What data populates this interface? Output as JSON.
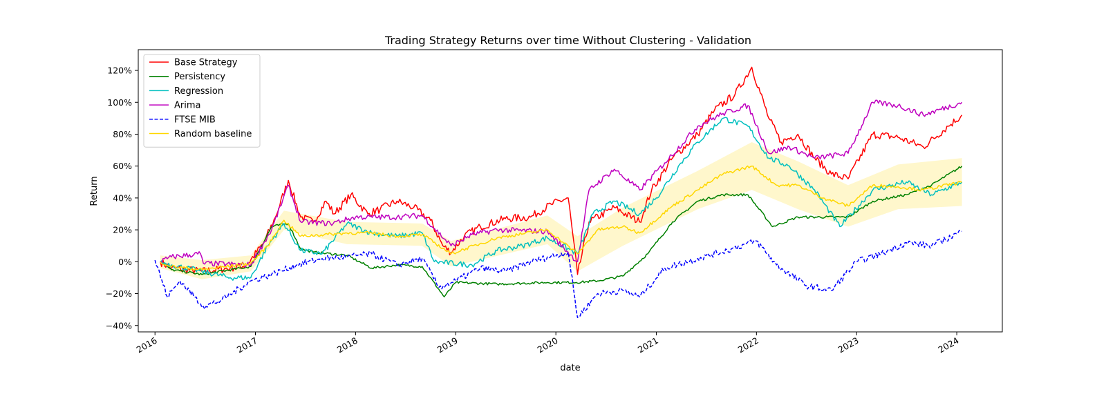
{
  "chart_data": {
    "type": "line",
    "title": "Trading Strategy Returns over time Without Clustering - Validation",
    "xlabel": "date",
    "ylabel": "Return",
    "xlim": [
      "2015-11-01",
      "2024-06-15"
    ],
    "ylim": [
      -0.44,
      1.33
    ],
    "x_ticks": [
      {
        "date": "2016-01-01",
        "label": "2016"
      },
      {
        "date": "2017-01-01",
        "label": "2017"
      },
      {
        "date": "2018-01-01",
        "label": "2018"
      },
      {
        "date": "2019-01-01",
        "label": "2019"
      },
      {
        "date": "2020-01-01",
        "label": "2020"
      },
      {
        "date": "2021-01-01",
        "label": "2021"
      },
      {
        "date": "2022-01-01",
        "label": "2022"
      },
      {
        "date": "2023-01-01",
        "label": "2023"
      },
      {
        "date": "2024-01-01",
        "label": "2024"
      }
    ],
    "y_ticks": [
      {
        "value": -0.4,
        "label": "−40%"
      },
      {
        "value": -0.2,
        "label": "−20%"
      },
      {
        "value": 0.0,
        "label": "0%"
      },
      {
        "value": 0.2,
        "label": "20%"
      },
      {
        "value": 0.4,
        "label": "40%"
      },
      {
        "value": 0.6,
        "label": "60%"
      },
      {
        "value": 0.8,
        "label": "80%"
      },
      {
        "value": 1.0,
        "label": "100%"
      },
      {
        "value": 1.2,
        "label": "120%"
      }
    ],
    "grid": false,
    "legend_position": "top-left",
    "series": [
      {
        "name": "Base Strategy",
        "color": "#ff0000",
        "style": "solid",
        "points": [
          [
            "2016-01-20",
            0
          ],
          [
            "2016-03-01",
            -0.04
          ],
          [
            "2016-06-20",
            -0.06
          ],
          [
            "2016-10-01",
            -0.04
          ],
          [
            "2016-12-01",
            -0.02
          ],
          [
            "2017-02-01",
            0.12
          ],
          [
            "2017-03-15",
            0.28
          ],
          [
            "2017-05-01",
            0.51
          ],
          [
            "2017-06-15",
            0.28
          ],
          [
            "2017-08-01",
            0.25
          ],
          [
            "2017-09-15",
            0.38
          ],
          [
            "2017-10-15",
            0.3
          ],
          [
            "2017-12-15",
            0.42
          ],
          [
            "2018-02-15",
            0.3
          ],
          [
            "2018-04-01",
            0.33
          ],
          [
            "2018-06-01",
            0.38
          ],
          [
            "2018-08-01",
            0.34
          ],
          [
            "2018-10-01",
            0.26
          ],
          [
            "2018-11-15",
            0.1
          ],
          [
            "2018-12-15",
            0.06
          ],
          [
            "2019-02-01",
            0.16
          ],
          [
            "2019-04-01",
            0.22
          ],
          [
            "2019-07-01",
            0.27
          ],
          [
            "2019-10-01",
            0.28
          ],
          [
            "2019-12-15",
            0.36
          ],
          [
            "2020-02-15",
            0.4
          ],
          [
            "2020-03-20",
            -0.08
          ],
          [
            "2020-05-01",
            0.25
          ],
          [
            "2020-08-01",
            0.34
          ],
          [
            "2020-11-01",
            0.25
          ],
          [
            "2020-12-15",
            0.45
          ],
          [
            "2021-03-01",
            0.65
          ],
          [
            "2021-06-01",
            0.8
          ],
          [
            "2021-08-01",
            0.95
          ],
          [
            "2021-10-15",
            1.05
          ],
          [
            "2021-12-15",
            1.22
          ],
          [
            "2022-02-15",
            0.9
          ],
          [
            "2022-04-01",
            0.75
          ],
          [
            "2022-06-01",
            0.8
          ],
          [
            "2022-08-01",
            0.65
          ],
          [
            "2022-10-01",
            0.55
          ],
          [
            "2022-12-01",
            0.52
          ],
          [
            "2023-03-01",
            0.8
          ],
          [
            "2023-06-01",
            0.78
          ],
          [
            "2023-09-01",
            0.72
          ],
          [
            "2023-12-01",
            0.85
          ],
          [
            "2024-01-20",
            0.92
          ]
        ]
      },
      {
        "name": "Persistency",
        "color": "#008000",
        "style": "solid",
        "points": [
          [
            "2016-01-20",
            0
          ],
          [
            "2016-03-01",
            -0.05
          ],
          [
            "2016-06-20",
            -0.08
          ],
          [
            "2016-12-15",
            -0.03
          ],
          [
            "2017-03-01",
            0.22
          ],
          [
            "2017-05-01",
            0.24
          ],
          [
            "2017-06-15",
            0.08
          ],
          [
            "2017-08-01",
            0.06
          ],
          [
            "2017-12-01",
            0.04
          ],
          [
            "2018-03-01",
            -0.04
          ],
          [
            "2018-06-01",
            -0.02
          ],
          [
            "2018-09-01",
            -0.03
          ],
          [
            "2018-11-20",
            -0.22
          ],
          [
            "2019-01-01",
            -0.13
          ],
          [
            "2019-06-01",
            -0.14
          ],
          [
            "2019-12-01",
            -0.13
          ],
          [
            "2020-03-15",
            -0.13
          ],
          [
            "2020-06-01",
            -0.12
          ],
          [
            "2020-09-01",
            -0.09
          ],
          [
            "2020-12-01",
            0.05
          ],
          [
            "2021-03-01",
            0.25
          ],
          [
            "2021-06-01",
            0.38
          ],
          [
            "2021-09-01",
            0.42
          ],
          [
            "2021-12-01",
            0.42
          ],
          [
            "2022-03-01",
            0.22
          ],
          [
            "2022-06-01",
            0.28
          ],
          [
            "2022-12-01",
            0.28
          ],
          [
            "2023-03-01",
            0.38
          ],
          [
            "2023-07-01",
            0.42
          ],
          [
            "2023-10-01",
            0.48
          ],
          [
            "2024-01-20",
            0.6
          ]
        ]
      },
      {
        "name": "Regression",
        "color": "#00bfbf",
        "style": "solid",
        "points": [
          [
            "2016-01-20",
            0
          ],
          [
            "2016-03-01",
            -0.02
          ],
          [
            "2016-06-20",
            -0.06
          ],
          [
            "2016-10-01",
            -0.1
          ],
          [
            "2016-12-15",
            -0.1
          ],
          [
            "2017-02-15",
            0.1
          ],
          [
            "2017-04-15",
            0.24
          ],
          [
            "2017-06-15",
            0.07
          ],
          [
            "2017-09-01",
            0.05
          ],
          [
            "2017-12-01",
            0.24
          ],
          [
            "2018-03-01",
            0.18
          ],
          [
            "2018-06-01",
            0.16
          ],
          [
            "2018-09-01",
            0.18
          ],
          [
            "2018-10-15",
            0.0
          ],
          [
            "2019-03-01",
            -0.02
          ],
          [
            "2019-06-01",
            0.07
          ],
          [
            "2019-09-01",
            0.1
          ],
          [
            "2019-12-01",
            0.15
          ],
          [
            "2020-03-20",
            0.05
          ],
          [
            "2020-05-15",
            0.3
          ],
          [
            "2020-08-01",
            0.38
          ],
          [
            "2020-11-01",
            0.3
          ],
          [
            "2021-01-01",
            0.4
          ],
          [
            "2021-04-01",
            0.62
          ],
          [
            "2021-06-01",
            0.75
          ],
          [
            "2021-09-01",
            0.9
          ],
          [
            "2021-12-01",
            0.85
          ],
          [
            "2022-02-15",
            0.65
          ],
          [
            "2022-05-01",
            0.6
          ],
          [
            "2022-08-01",
            0.45
          ],
          [
            "2022-11-01",
            0.22
          ],
          [
            "2023-03-01",
            0.45
          ],
          [
            "2023-07-01",
            0.5
          ],
          [
            "2023-10-01",
            0.42
          ],
          [
            "2024-01-20",
            0.5
          ]
        ]
      },
      {
        "name": "Arima",
        "color": "#bf00bf",
        "style": "solid",
        "points": [
          [
            "2016-01-20",
            0
          ],
          [
            "2016-03-01",
            0.03
          ],
          [
            "2016-06-15",
            0.05
          ],
          [
            "2016-06-25",
            -0.01
          ],
          [
            "2016-12-15",
            -0.02
          ],
          [
            "2017-03-01",
            0.2
          ],
          [
            "2017-05-01",
            0.48
          ],
          [
            "2017-06-15",
            0.25
          ],
          [
            "2017-10-01",
            0.24
          ],
          [
            "2018-01-01",
            0.28
          ],
          [
            "2018-06-01",
            0.28
          ],
          [
            "2018-09-01",
            0.29
          ],
          [
            "2018-12-15",
            0.1
          ],
          [
            "2019-03-01",
            0.17
          ],
          [
            "2019-06-01",
            0.2
          ],
          [
            "2019-12-01",
            0.19
          ],
          [
            "2020-03-20",
            0.0
          ],
          [
            "2020-05-01",
            0.45
          ],
          [
            "2020-08-01",
            0.58
          ],
          [
            "2020-11-01",
            0.45
          ],
          [
            "2021-02-01",
            0.62
          ],
          [
            "2021-06-01",
            0.85
          ],
          [
            "2021-09-01",
            0.93
          ],
          [
            "2021-12-01",
            0.98
          ],
          [
            "2022-02-15",
            0.68
          ],
          [
            "2022-05-01",
            0.72
          ],
          [
            "2022-08-01",
            0.65
          ],
          [
            "2022-12-01",
            0.68
          ],
          [
            "2023-03-01",
            1.0
          ],
          [
            "2023-06-01",
            0.98
          ],
          [
            "2023-09-01",
            0.92
          ],
          [
            "2024-01-20",
            1.0
          ]
        ]
      },
      {
        "name": "FTSE MIB",
        "color": "#0000ff",
        "style": "dashed",
        "points": [
          [
            "2016-01-01",
            0.01
          ],
          [
            "2016-02-15",
            -0.22
          ],
          [
            "2016-04-01",
            -0.12
          ],
          [
            "2016-06-25",
            -0.28
          ],
          [
            "2016-09-01",
            -0.24
          ],
          [
            "2016-12-15",
            -0.12
          ],
          [
            "2017-03-01",
            -0.08
          ],
          [
            "2017-06-01",
            -0.02
          ],
          [
            "2017-09-01",
            0.02
          ],
          [
            "2017-12-01",
            0.03
          ],
          [
            "2018-03-01",
            0.05
          ],
          [
            "2018-06-01",
            -0.02
          ],
          [
            "2018-09-01",
            0.02
          ],
          [
            "2018-11-01",
            -0.16
          ],
          [
            "2019-01-01",
            -0.12
          ],
          [
            "2019-04-01",
            -0.04
          ],
          [
            "2019-07-01",
            -0.06
          ],
          [
            "2019-10-01",
            0.0
          ],
          [
            "2020-02-15",
            0.06
          ],
          [
            "2020-03-20",
            -0.35
          ],
          [
            "2020-06-01",
            -0.2
          ],
          [
            "2020-09-01",
            -0.18
          ],
          [
            "2020-11-01",
            -0.22
          ],
          [
            "2021-02-01",
            -0.04
          ],
          [
            "2021-06-01",
            0.02
          ],
          [
            "2021-10-01",
            0.08
          ],
          [
            "2022-01-01",
            0.13
          ],
          [
            "2022-03-15",
            -0.02
          ],
          [
            "2022-07-01",
            -0.15
          ],
          [
            "2022-10-01",
            -0.18
          ],
          [
            "2023-01-01",
            0.0
          ],
          [
            "2023-04-01",
            0.05
          ],
          [
            "2023-07-01",
            0.12
          ],
          [
            "2023-10-01",
            0.1
          ],
          [
            "2024-01-20",
            0.19
          ]
        ]
      },
      {
        "name": "Random baseline",
        "color": "#ffd700",
        "style": "solid",
        "points": [
          [
            "2016-01-20",
            0
          ],
          [
            "2016-03-01",
            -0.03
          ],
          [
            "2016-06-20",
            -0.05
          ],
          [
            "2016-12-15",
            -0.01
          ],
          [
            "2017-02-15",
            0.1
          ],
          [
            "2017-04-15",
            0.26
          ],
          [
            "2017-06-15",
            0.16
          ],
          [
            "2017-12-01",
            0.18
          ],
          [
            "2018-03-01",
            0.18
          ],
          [
            "2018-06-01",
            0.16
          ],
          [
            "2018-09-01",
            0.17
          ],
          [
            "2018-12-15",
            0.05
          ],
          [
            "2019-06-01",
            0.15
          ],
          [
            "2019-12-01",
            0.2
          ],
          [
            "2020-03-20",
            0.05
          ],
          [
            "2020-06-01",
            0.2
          ],
          [
            "2020-09-01",
            0.22
          ],
          [
            "2020-11-01",
            0.18
          ],
          [
            "2021-03-01",
            0.35
          ],
          [
            "2021-06-01",
            0.45
          ],
          [
            "2021-09-01",
            0.55
          ],
          [
            "2021-12-15",
            0.6
          ],
          [
            "2022-03-15",
            0.48
          ],
          [
            "2022-06-01",
            0.48
          ],
          [
            "2022-09-01",
            0.4
          ],
          [
            "2022-12-01",
            0.35
          ],
          [
            "2023-03-01",
            0.48
          ],
          [
            "2023-06-01",
            0.47
          ],
          [
            "2023-09-01",
            0.45
          ],
          [
            "2024-01-20",
            0.5
          ]
        ],
        "band": [
          [
            "2016-01-20",
            -0.04,
            0.04
          ],
          [
            "2016-06-20",
            -0.11,
            0.01
          ],
          [
            "2016-12-15",
            -0.06,
            0.04
          ],
          [
            "2017-04-15",
            0.2,
            0.32
          ],
          [
            "2017-12-01",
            0.11,
            0.25
          ],
          [
            "2018-09-01",
            0.1,
            0.24
          ],
          [
            "2018-12-15",
            -0.03,
            0.13
          ],
          [
            "2019-12-01",
            0.11,
            0.29
          ],
          [
            "2020-03-20",
            -0.06,
            0.16
          ],
          [
            "2020-09-01",
            0.1,
            0.34
          ],
          [
            "2021-06-01",
            0.33,
            0.57
          ],
          [
            "2021-12-15",
            0.45,
            0.75
          ],
          [
            "2022-06-01",
            0.33,
            0.63
          ],
          [
            "2022-12-01",
            0.22,
            0.48
          ],
          [
            "2023-06-01",
            0.33,
            0.61
          ],
          [
            "2024-01-20",
            0.35,
            0.65
          ]
        ]
      }
    ]
  }
}
